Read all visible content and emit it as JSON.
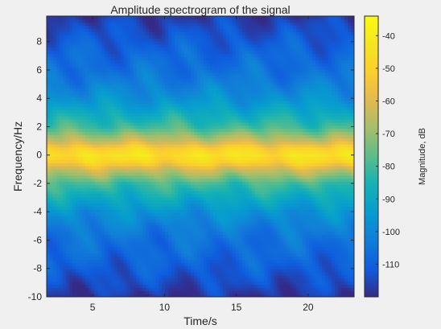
{
  "chart_data": {
    "type": "heatmap",
    "title": "Amplitude spectrogram of the signal",
    "xlabel": "Time/s",
    "ylabel": "Frequency/Hz",
    "xlim": [
      1.8,
      23.2
    ],
    "ylim": [
      -10,
      9.8
    ],
    "xticks": [
      5,
      10,
      15,
      20
    ],
    "xtick_labels": [
      "5",
      "10",
      "15",
      "20"
    ],
    "yticks": [
      -10,
      -8,
      -6,
      -4,
      -2,
      0,
      2,
      4,
      6,
      8
    ],
    "ytick_labels": [
      "-10",
      "-8",
      "-6",
      "-4",
      "-2",
      "0",
      "2",
      "4",
      "6",
      "8"
    ],
    "colorbar": {
      "label": "Magnitude, dB",
      "limits": [
        -120,
        -34
      ],
      "ticks": [
        -110,
        -100,
        -90,
        -80,
        -70,
        -60,
        -50,
        -40
      ],
      "tick_labels": [
        "-110",
        "-100",
        "-90",
        "-80",
        "-70",
        "-60",
        "-50",
        "-40"
      ],
      "colormap": "parula"
    },
    "frequency_profile_db": [
      {
        "frequency": -10,
        "db": -118
      },
      {
        "frequency": -9,
        "db": -114
      },
      {
        "frequency": -8,
        "db": -111
      },
      {
        "frequency": -7,
        "db": -108
      },
      {
        "frequency": -6,
        "db": -106
      },
      {
        "frequency": -5,
        "db": -102
      },
      {
        "frequency": -4,
        "db": -97
      },
      {
        "frequency": -3,
        "db": -89
      },
      {
        "frequency": -2,
        "db": -80
      },
      {
        "frequency": -1,
        "db": -63
      },
      {
        "frequency": -0.5,
        "db": -50
      },
      {
        "frequency": 0,
        "db": -44
      },
      {
        "frequency": 0.5,
        "db": -50
      },
      {
        "frequency": 1,
        "db": -63
      },
      {
        "frequency": 2,
        "db": -80
      },
      {
        "frequency": 3,
        "db": -89
      },
      {
        "frequency": 4,
        "db": -97
      },
      {
        "frequency": 5,
        "db": -102
      },
      {
        "frequency": 6,
        "db": -106
      },
      {
        "frequency": 7,
        "db": -108
      },
      {
        "frequency": 8,
        "db": -111
      },
      {
        "frequency": 9,
        "db": -114
      },
      {
        "frequency": 9.8,
        "db": -117
      }
    ]
  },
  "figure": {
    "background": "#f0f0f0",
    "axes_color": "#262626"
  }
}
